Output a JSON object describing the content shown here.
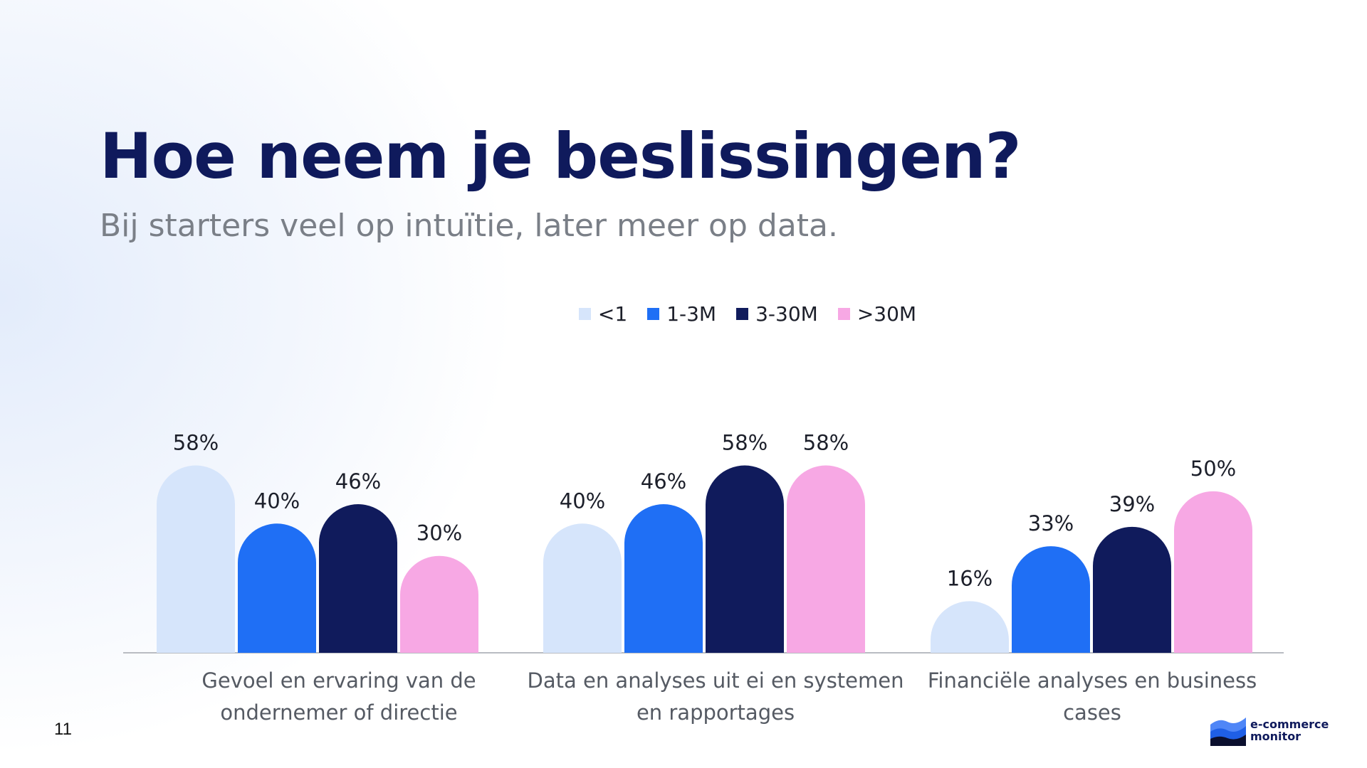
{
  "slide": {
    "title": "Hoe neem je beslissingen?",
    "subtitle": "Bij starters veel op intuïtie, later meer op data.",
    "page_number": "11"
  },
  "logo": {
    "line1": "e-commerce",
    "line2": "monitor"
  },
  "colors": {
    "title": "#0f1a5c",
    "subtitle": "#7a7f87",
    "axis": "#b9bcc2",
    "value_label": "#1c1f2a",
    "category_label": "#555a63"
  },
  "chart_data": {
    "type": "bar",
    "categories": [
      "Gevoel en ervaring van de ondernemer of directie",
      "Data en analyses uit ei  en systemen en rapportages",
      "Financiële analyses en business cases"
    ],
    "category_lines": [
      [
        "Gevoel en ervaring van de",
        "ondernemer of directie"
      ],
      [
        "Data en analyses uit ei  en systemen",
        "en rapportages"
      ],
      [
        "Financiële analyses en business",
        "cases"
      ]
    ],
    "series": [
      {
        "name": "<1",
        "color": "#d6e5fb",
        "values": [
          58,
          40,
          16
        ]
      },
      {
        "name": "1-3M",
        "color": "#1f6ff5",
        "values": [
          40,
          46,
          33
        ]
      },
      {
        "name": "3-30M",
        "color": "#101b5c",
        "values": [
          46,
          58,
          39
        ]
      },
      {
        "name": ">30M",
        "color": "#f7a8e4",
        "values": [
          30,
          58,
          50
        ]
      }
    ],
    "value_format": "{v}%",
    "ylim": [
      0,
      70
    ],
    "legend_position": "top-center",
    "grid": false,
    "bar_shape": "rounded-top"
  }
}
